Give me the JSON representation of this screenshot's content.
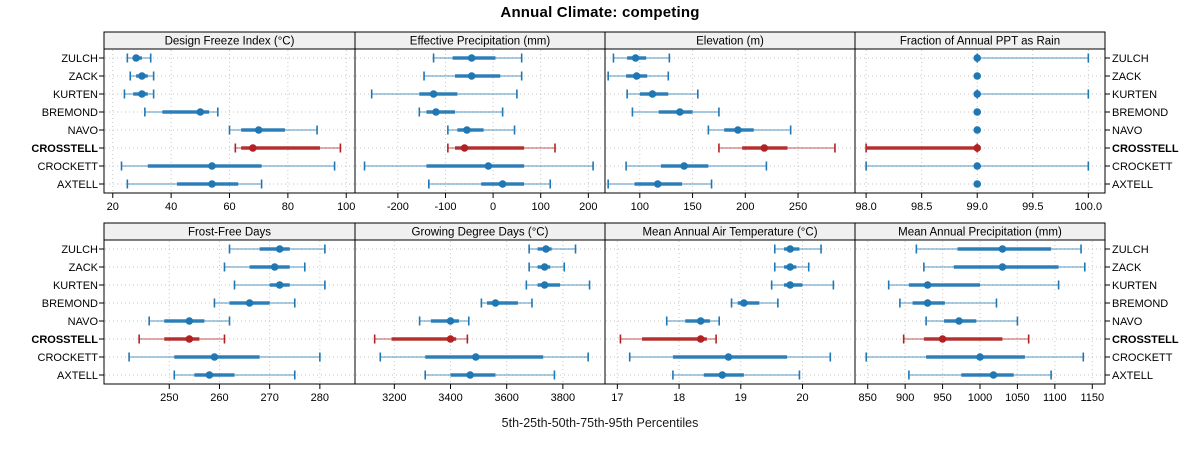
{
  "chart_data": {
    "type": "dot-whisker-trellis",
    "title": "Annual Climate: competing",
    "caption": "5th-25th-50th-75th-95th Percentiles",
    "percentile_labels": [
      "5th",
      "25th",
      "50th",
      "75th",
      "95th"
    ],
    "locations": [
      "ZULCH",
      "ZACK",
      "KURTEN",
      "BREMOND",
      "NAVO",
      "CROSSTELL",
      "CROCKETT",
      "AXTELL"
    ],
    "highlight_location": "CROSSTELL",
    "layout": {
      "rows": 2,
      "cols": 4,
      "grid": "dotted",
      "legend": "none",
      "row_labels": "both-sides"
    },
    "colors": {
      "series": "#1f77b4",
      "highlight": "#b22222",
      "grid": "#c6c6c6",
      "strip_bg": "#f0f0f0",
      "border": "#000000"
    },
    "panels": [
      {
        "title": "Design Freeze Index (°C)",
        "row": 0,
        "col": 0,
        "xlim": [
          17,
          103
        ],
        "tick_values": [
          20,
          40,
          60,
          80,
          100
        ],
        "tick_labels": [
          "20",
          "40",
          "60",
          "80",
          "100"
        ],
        "series": {
          "ZULCH": [
            25,
            27,
            28,
            30,
            33
          ],
          "ZACK": [
            26,
            28,
            30,
            32,
            34
          ],
          "KURTEN": [
            24,
            27,
            30,
            32,
            34
          ],
          "BREMOND": [
            31,
            37,
            50,
            53,
            56
          ],
          "NAVO": [
            60,
            64,
            70,
            79,
            90
          ],
          "CROSSTELL": [
            62,
            64,
            68,
            91,
            98
          ],
          "CROCKETT": [
            23,
            32,
            54,
            71,
            96
          ],
          "AXTELL": [
            25,
            42,
            54,
            63,
            71
          ]
        }
      },
      {
        "title": "Effective Precipitation (mm)",
        "row": 0,
        "col": 1,
        "xlim": [
          -290,
          235
        ],
        "tick_values": [
          -200,
          -100,
          0,
          100,
          200
        ],
        "tick_labels": [
          "-200",
          "-100",
          "0",
          "100",
          "200"
        ],
        "series": {
          "ZULCH": [
            -125,
            -85,
            -45,
            5,
            60
          ],
          "ZACK": [
            -145,
            -80,
            -45,
            15,
            60
          ],
          "KURTEN": [
            -255,
            -155,
            -125,
            -75,
            50
          ],
          "BREMOND": [
            -155,
            -140,
            -120,
            -80,
            20
          ],
          "NAVO": [
            -95,
            -75,
            -55,
            -20,
            45
          ],
          "CROSSTELL": [
            -95,
            -80,
            -60,
            65,
            130
          ],
          "CROCKETT": [
            -270,
            -140,
            -10,
            65,
            210
          ],
          "AXTELL": [
            -135,
            -25,
            20,
            65,
            120
          ]
        }
      },
      {
        "title": "Elevation (m)",
        "row": 0,
        "col": 2,
        "xlim": [
          67,
          304
        ],
        "tick_values": [
          100,
          150,
          200,
          250
        ],
        "tick_labels": [
          "100",
          "150",
          "200",
          "250"
        ],
        "series": {
          "ZULCH": [
            75,
            88,
            96,
            106,
            128
          ],
          "ZACK": [
            70,
            87,
            97,
            107,
            127
          ],
          "KURTEN": [
            88,
            100,
            112,
            127,
            155
          ],
          "BREMOND": [
            93,
            118,
            138,
            150,
            175
          ],
          "NAVO": [
            165,
            180,
            193,
            208,
            243
          ],
          "CROSSTELL": [
            175,
            197,
            218,
            240,
            285
          ],
          "CROCKETT": [
            87,
            120,
            142,
            165,
            220
          ],
          "AXTELL": [
            70,
            95,
            117,
            140,
            168
          ]
        }
      },
      {
        "title": "Fraction of Annual PPT as Rain",
        "row": 0,
        "col": 3,
        "xlim": [
          97.9,
          100.15
        ],
        "tick_values": [
          98.0,
          98.5,
          99.0,
          99.5,
          100.0
        ],
        "tick_labels": [
          "98.0",
          "98.5",
          "99.0",
          "99.5",
          "100.0"
        ],
        "series": {
          "ZULCH": [
            99,
            99,
            99,
            99,
            100
          ],
          "ZACK": [
            99,
            99,
            99,
            99,
            99
          ],
          "KURTEN": [
            99,
            99,
            99,
            99,
            100
          ],
          "BREMOND": [
            99,
            99,
            99,
            99,
            99
          ],
          "NAVO": [
            99,
            99,
            99,
            99,
            99
          ],
          "CROSSTELL": [
            98,
            98,
            99,
            99,
            99
          ],
          "CROCKETT": [
            98,
            99,
            99,
            99,
            100
          ],
          "AXTELL": [
            99,
            99,
            99,
            99,
            99
          ]
        }
      },
      {
        "title": "Frost-Free Days",
        "row": 1,
        "col": 0,
        "xlim": [
          237,
          287
        ],
        "tick_values": [
          250,
          260,
          270,
          280
        ],
        "tick_labels": [
          "250",
          "260",
          "270",
          "280"
        ],
        "series": {
          "ZULCH": [
            262,
            268,
            272,
            274,
            281
          ],
          "ZACK": [
            261,
            266,
            271,
            274,
            277
          ],
          "KURTEN": [
            263,
            270,
            272,
            274,
            281
          ],
          "BREMOND": [
            259,
            262,
            266,
            270,
            275
          ],
          "NAVO": [
            246,
            249,
            254,
            257,
            262
          ],
          "CROSSTELL": [
            244,
            249,
            254,
            256,
            261
          ],
          "CROCKETT": [
            242,
            251,
            259,
            268,
            280
          ],
          "AXTELL": [
            251,
            255,
            258,
            263,
            275
          ]
        }
      },
      {
        "title": "Growing Degree Days (°C)",
        "row": 1,
        "col": 1,
        "xlim": [
          3060,
          3950
        ],
        "tick_values": [
          3200,
          3400,
          3600,
          3800
        ],
        "tick_labels": [
          "3200",
          "3400",
          "3600",
          "3800"
        ],
        "series": {
          "ZULCH": [
            3680,
            3710,
            3740,
            3760,
            3845
          ],
          "ZACK": [
            3680,
            3710,
            3735,
            3755,
            3805
          ],
          "KURTEN": [
            3670,
            3710,
            3735,
            3790,
            3895
          ],
          "BREMOND": [
            3510,
            3530,
            3560,
            3640,
            3690
          ],
          "NAVO": [
            3290,
            3330,
            3400,
            3430,
            3465
          ],
          "CROSSTELL": [
            3130,
            3190,
            3400,
            3420,
            3460
          ],
          "CROCKETT": [
            3150,
            3310,
            3490,
            3730,
            3890
          ],
          "AXTELL": [
            3310,
            3400,
            3470,
            3560,
            3770
          ]
        }
      },
      {
        "title": "Mean Annual Air Temperature (°C)",
        "row": 1,
        "col": 2,
        "xlim": [
          16.8,
          20.85
        ],
        "tick_values": [
          17,
          18,
          19,
          20
        ],
        "tick_labels": [
          "17",
          "18",
          "19",
          "20"
        ],
        "series": {
          "ZULCH": [
            19.55,
            19.7,
            19.8,
            19.95,
            20.3
          ],
          "ZACK": [
            19.55,
            19.7,
            19.8,
            19.9,
            20.1
          ],
          "KURTEN": [
            19.5,
            19.7,
            19.8,
            20.0,
            20.5
          ],
          "BREMOND": [
            18.85,
            18.95,
            19.05,
            19.3,
            19.6
          ],
          "NAVO": [
            17.8,
            18.1,
            18.35,
            18.5,
            18.65
          ],
          "CROSSTELL": [
            17.05,
            17.4,
            18.35,
            18.45,
            18.6
          ],
          "CROCKETT": [
            17.2,
            17.9,
            18.8,
            19.75,
            20.45
          ],
          "AXTELL": [
            17.9,
            18.4,
            18.7,
            19.05,
            19.95
          ]
        }
      },
      {
        "title": "Mean Annual Precipitation (mm)",
        "row": 1,
        "col": 3,
        "xlim": [
          833,
          1167
        ],
        "tick_values": [
          850,
          900,
          950,
          1000,
          1050,
          1100,
          1150
        ],
        "tick_labels": [
          "850",
          "900",
          "950",
          "1000",
          "1050",
          "1100",
          "1150"
        ],
        "series": {
          "ZULCH": [
            915,
            970,
            1030,
            1095,
            1135
          ],
          "ZACK": [
            925,
            965,
            1030,
            1105,
            1140
          ],
          "KURTEN": [
            878,
            905,
            930,
            1000,
            1105
          ],
          "BREMOND": [
            893,
            910,
            930,
            953,
            1022
          ],
          "NAVO": [
            928,
            952,
            972,
            995,
            1050
          ],
          "CROSSTELL": [
            898,
            925,
            950,
            1030,
            1065
          ],
          "CROCKETT": [
            848,
            928,
            1000,
            1060,
            1138
          ],
          "AXTELL": [
            905,
            975,
            1018,
            1045,
            1095
          ]
        }
      }
    ]
  }
}
